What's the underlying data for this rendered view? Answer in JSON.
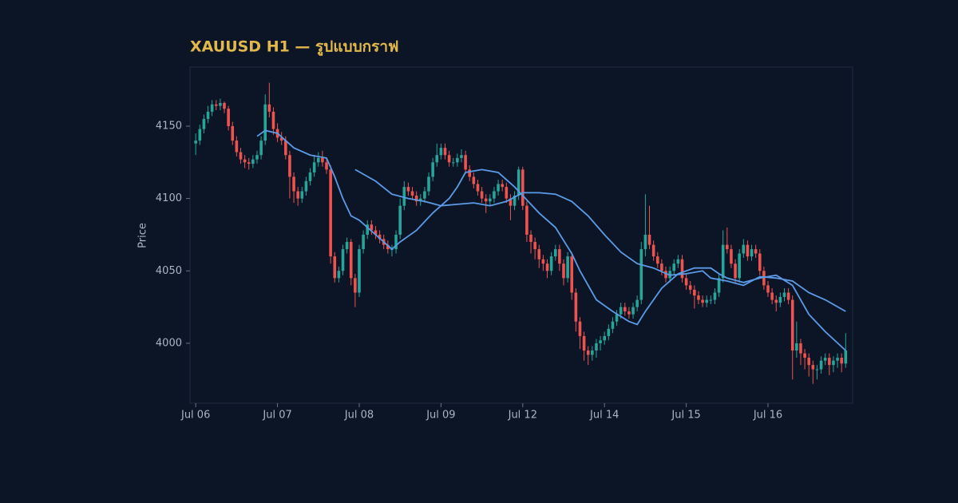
{
  "chart_data": {
    "type": "candlestick",
    "title": "XAUUSD H1 — รูปแบบกราฟ",
    "ylabel": "Price",
    "up_color": "#26a69a",
    "down_color": "#ef5350",
    "xlim": [
      -1.4,
      160.7
    ],
    "xticks": [
      {
        "value": 0,
        "label": "Jul 06"
      },
      {
        "value": 20,
        "label": "Jul 07"
      },
      {
        "value": 40,
        "label": "Jul 08"
      },
      {
        "value": 60,
        "label": "Jul 09"
      },
      {
        "value": 80,
        "label": "Jul 12"
      },
      {
        "value": 100,
        "label": "Jul 14"
      },
      {
        "value": 120,
        "label": "Jul 15"
      },
      {
        "value": 140,
        "label": "Jul 16"
      }
    ],
    "ylim": [
      3958.6,
      4190.8
    ],
    "yticks": [
      4000,
      4050,
      4100,
      4150
    ],
    "open": [
      4138,
      4140,
      4148,
      4155,
      4160,
      4165,
      4164,
      4166,
      4162,
      4150,
      4140,
      4132,
      4127,
      4125,
      4124,
      4127,
      4130,
      4140,
      4165,
      4160,
      4148,
      4142,
      4140,
      4130,
      4115,
      4105,
      4100,
      4105,
      4112,
      4118,
      4125,
      4128,
      4125,
      4120,
      4060,
      4045,
      4050,
      4065,
      4070,
      4045,
      4035,
      4065,
      4075,
      4082,
      4078,
      4075,
      4072,
      4068,
      4065,
      4065,
      4075,
      4095,
      4108,
      4105,
      4102,
      4098,
      4100,
      4105,
      4115,
      4125,
      4130,
      4135,
      4130,
      4125,
      4125,
      4128,
      4130,
      4120,
      4115,
      4110,
      4105,
      4100,
      4098,
      4100,
      4105,
      4110,
      4108,
      4100,
      4095,
      4102,
      4120,
      4095,
      4075,
      4070,
      4065,
      4058,
      4055,
      4050,
      4060,
      4065,
      4055,
      4045,
      4060,
      4035,
      4015,
      4005,
      3995,
      3992,
      3995,
      4000,
      4002,
      4005,
      4010,
      4015,
      4020,
      4025,
      4022,
      4020,
      4025,
      4030,
      4065,
      4075,
      4068,
      4060,
      4055,
      4050,
      4045,
      4050,
      4055,
      4058,
      4045,
      4040,
      4037,
      4033,
      4030,
      4028,
      4030,
      4030,
      4035,
      4045,
      4068,
      4065,
      4055,
      4045,
      4062,
      4068,
      4060,
      4065,
      4062,
      4050,
      4040,
      4035,
      4030,
      4028,
      4032,
      4035,
      4030,
      3995,
      4000,
      3993,
      3990,
      3985,
      3982,
      3982,
      3988,
      3990,
      3985,
      3988,
      3990,
      3986
    ],
    "high": [
      4145,
      4151,
      4158,
      4164,
      4168,
      4168,
      4169,
      4167,
      4164,
      4153,
      4143,
      4135,
      4130,
      4128,
      4130,
      4133,
      4143,
      4172,
      4180,
      4163,
      4152,
      4146,
      4143,
      4133,
      4118,
      4108,
      4108,
      4115,
      4121,
      4130,
      4132,
      4133,
      4128,
      4123,
      4063,
      4053,
      4068,
      4073,
      4072,
      4048,
      4068,
      4078,
      4085,
      4085,
      4081,
      4078,
      4075,
      4071,
      4068,
      4078,
      4100,
      4112,
      4111,
      4108,
      4105,
      4103,
      4108,
      4118,
      4128,
      4138,
      4138,
      4138,
      4133,
      4128,
      4131,
      4134,
      4133,
      4123,
      4118,
      4113,
      4108,
      4103,
      4103,
      4108,
      4113,
      4113,
      4111,
      4103,
      4105,
      4122,
      4122,
      4098,
      4078,
      4073,
      4068,
      4061,
      4058,
      4063,
      4068,
      4068,
      4058,
      4063,
      4063,
      4038,
      4018,
      4008,
      3998,
      3998,
      4003,
      4005,
      4008,
      4013,
      4018,
      4023,
      4028,
      4028,
      4025,
      4028,
      4033,
      4070,
      4103,
      4095,
      4071,
      4063,
      4058,
      4053,
      4053,
      4058,
      4061,
      4061,
      4048,
      4043,
      4040,
      4036,
      4033,
      4033,
      4033,
      4038,
      4048,
      4078,
      4080,
      4068,
      4058,
      4065,
      4072,
      4071,
      4068,
      4068,
      4065,
      4053,
      4043,
      4038,
      4033,
      4035,
      4038,
      4038,
      4033,
      4015,
      4003,
      3996,
      3993,
      3988,
      3985,
      3991,
      3993,
      3993,
      3991,
      3993,
      3993,
      4007
    ],
    "low": [
      4130,
      4137,
      4145,
      4152,
      4157,
      4161,
      4161,
      4159,
      4147,
      4137,
      4129,
      4124,
      4121,
      4120,
      4121,
      4124,
      4127,
      4137,
      4156,
      4144,
      4139,
      4137,
      4127,
      4100,
      4097,
      4095,
      4097,
      4102,
      4109,
      4115,
      4122,
      4122,
      4117,
      4055,
      4042,
      4042,
      4047,
      4062,
      4040,
      4025,
      4032,
      4062,
      4072,
      4075,
      4072,
      4069,
      4065,
      4062,
      4060,
      4062,
      4072,
      4092,
      4102,
      4099,
      4095,
      4095,
      4097,
      4102,
      4112,
      4122,
      4127,
      4127,
      4122,
      4122,
      4122,
      4125,
      4117,
      4112,
      4107,
      4102,
      4097,
      4090,
      4095,
      4097,
      4102,
      4105,
      4097,
      4085,
      4092,
      4099,
      4092,
      4070,
      4062,
      4058,
      4052,
      4050,
      4045,
      4047,
      4057,
      4050,
      4040,
      4042,
      4030,
      4008,
      3996,
      3988,
      3985,
      3988,
      3990,
      3995,
      3999,
      4002,
      4007,
      4012,
      4017,
      4019,
      4017,
      4017,
      4022,
      4027,
      4060,
      4065,
      4057,
      4052,
      4047,
      4042,
      4042,
      4047,
      4052,
      4042,
      4037,
      4034,
      4024,
      4027,
      4025,
      4025,
      4027,
      4027,
      4032,
      4042,
      4062,
      4052,
      4042,
      4042,
      4059,
      4057,
      4057,
      4059,
      4047,
      4037,
      4032,
      4027,
      4022,
      4025,
      4029,
      4027,
      3975,
      3990,
      3985,
      3982,
      3977,
      3972,
      3975,
      3979,
      3985,
      3978,
      3980,
      3983,
      3980,
      3983
    ],
    "close": [
      4140,
      4148,
      4155,
      4160,
      4165,
      4164,
      4166,
      4162,
      4150,
      4140,
      4132,
      4127,
      4125,
      4124,
      4127,
      4130,
      4140,
      4165,
      4160,
      4148,
      4142,
      4140,
      4130,
      4115,
      4105,
      4100,
      4105,
      4112,
      4118,
      4125,
      4128,
      4125,
      4120,
      4060,
      4045,
      4050,
      4065,
      4070,
      4045,
      4035,
      4065,
      4075,
      4082,
      4078,
      4075,
      4072,
      4068,
      4065,
      4065,
      4075,
      4095,
      4108,
      4105,
      4102,
      4098,
      4100,
      4105,
      4115,
      4125,
      4130,
      4135,
      4130,
      4125,
      4125,
      4128,
      4130,
      4120,
      4115,
      4110,
      4105,
      4100,
      4098,
      4100,
      4105,
      4110,
      4108,
      4100,
      4095,
      4102,
      4120,
      4095,
      4075,
      4070,
      4065,
      4058,
      4055,
      4050,
      4060,
      4065,
      4055,
      4045,
      4060,
      4035,
      4015,
      4005,
      3995,
      3992,
      3995,
      4000,
      4002,
      4005,
      4010,
      4015,
      4020,
      4025,
      4022,
      4020,
      4025,
      4030,
      4065,
      4075,
      4068,
      4060,
      4055,
      4050,
      4045,
      4050,
      4055,
      4058,
      4045,
      4040,
      4037,
      4033,
      4030,
      4028,
      4030,
      4030,
      4035,
      4045,
      4068,
      4065,
      4055,
      4045,
      4062,
      4068,
      4060,
      4065,
      4062,
      4050,
      4040,
      4035,
      4030,
      4028,
      4032,
      4035,
      4030,
      3995,
      4000,
      3993,
      3990,
      3985,
      3982,
      3982,
      3988,
      3990,
      3985,
      3988,
      3990,
      3986,
      3995
    ],
    "series": [
      {
        "color": "#5b9be6",
        "x": [
          15,
          17,
          20,
          24,
          28,
          32,
          34,
          36,
          38,
          40,
          44,
          48,
          50,
          54,
          58,
          62,
          64,
          66,
          70,
          74,
          78,
          80,
          84,
          88,
          92,
          94,
          98,
          102,
          106,
          108,
          110,
          114,
          118,
          122,
          126,
          128,
          130,
          134,
          138,
          142,
          146,
          150,
          154,
          159
        ],
        "values": [
          4143,
          4147,
          4145,
          4135,
          4130,
          4128,
          4115,
          4100,
          4088,
          4085,
          4075,
          4065,
          4070,
          4078,
          4090,
          4100,
          4108,
          4118,
          4120,
          4118,
          4108,
          4102,
          4090,
          4080,
          4062,
          4050,
          4030,
          4022,
          4015,
          4013,
          4022,
          4038,
          4048,
          4052,
          4052,
          4048,
          4045,
          4042,
          4045,
          4047,
          4040,
          4020,
          4008,
          3995
        ]
      },
      {
        "color": "#5b9be6",
        "x": [
          39,
          44,
          48,
          52,
          56,
          60,
          64,
          68,
          72,
          76,
          80,
          84,
          88,
          92,
          96,
          100,
          104,
          108,
          112,
          116,
          120,
          124,
          126,
          130,
          134,
          138,
          142,
          146,
          150,
          154,
          159
        ],
        "values": [
          4120,
          4112,
          4103,
          4100,
          4098,
          4095,
          4096,
          4097,
          4095,
          4098,
          4104,
          4104,
          4103,
          4098,
          4088,
          4075,
          4063,
          4055,
          4052,
          4047,
          4048,
          4050,
          4045,
          4043,
          4040,
          4046,
          4045,
          4043,
          4035,
          4030,
          4022
        ]
      }
    ]
  }
}
